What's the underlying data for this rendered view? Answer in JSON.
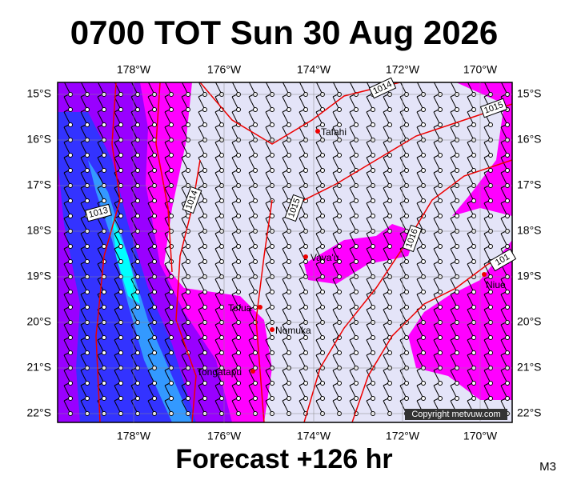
{
  "header": {
    "title": "0700 TOT Sun 30 Aug 2026"
  },
  "footer": {
    "forecast": "Forecast +126 hr",
    "model": "M3"
  },
  "map": {
    "lon_labels": [
      "178°W",
      "176°W",
      "174°W",
      "172°W",
      "170°W"
    ],
    "lat_labels": [
      "15°S",
      "16°S",
      "17°S",
      "18°S",
      "19°S",
      "20°S",
      "21°S",
      "22°S"
    ],
    "places": [
      "Tafahi",
      "Vava'u",
      "Niue",
      "Tofua",
      "Nomuka",
      "Tongatapu"
    ],
    "isobar_labels": [
      "1013",
      "1014",
      "1015",
      "1014",
      "1015",
      "1016",
      "101"
    ],
    "copyright": "Copyright metvuw.com"
  }
}
